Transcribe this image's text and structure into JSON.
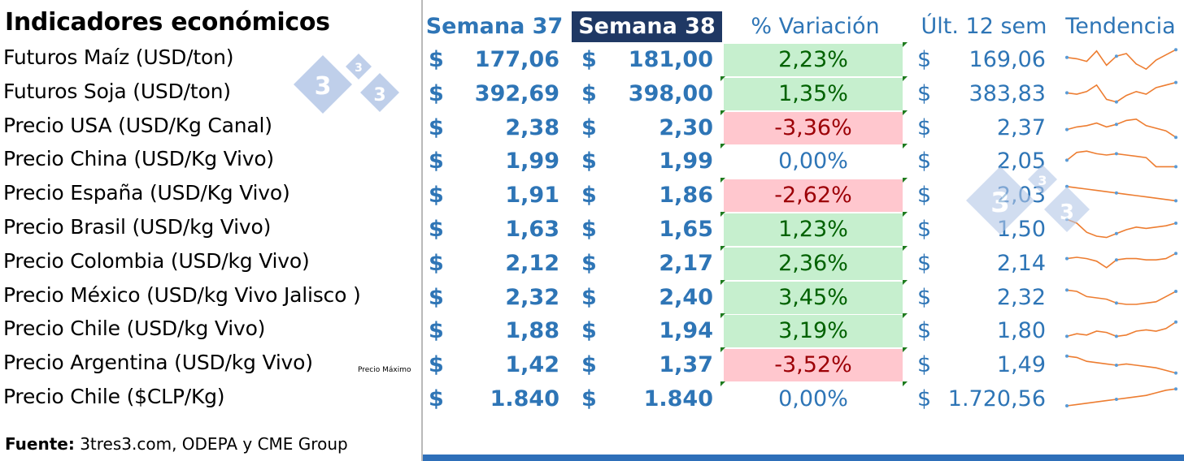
{
  "title": "Indicadores económicos",
  "headers": {
    "week_prev": "Semana 37",
    "week_curr": "Semana 38",
    "variation": "% Variación",
    "last12": "Últ. 12 sem",
    "trend": "Tendencia"
  },
  "currency_symbol": "$",
  "rows": [
    {
      "label": "Futuros Maíz (USD/ton)",
      "w37": "177,06",
      "w38": "181,00",
      "var": "2,23%",
      "dir": "up",
      "avg": "169,06",
      "spark": [
        0.6,
        0.55,
        0.45,
        0.85,
        0.3,
        0.65,
        0.75,
        0.35,
        0.15,
        0.5,
        0.7,
        0.9
      ]
    },
    {
      "label": "Futuros Soja (USD/ton)",
      "w37": "392,69",
      "w38": "398,00",
      "var": "1,35%",
      "dir": "up",
      "avg": "383,83",
      "spark": [
        0.55,
        0.5,
        0.6,
        0.85,
        0.3,
        0.2,
        0.45,
        0.6,
        0.5,
        0.75,
        0.85,
        0.95
      ]
    },
    {
      "label": "Precio USA (USD/Kg Canal)",
      "w37": "2,38",
      "w38": "2,30",
      "var": "-3,36%",
      "dir": "down",
      "avg": "2,37",
      "spark": [
        0.45,
        0.55,
        0.6,
        0.7,
        0.55,
        0.65,
        0.8,
        0.85,
        0.6,
        0.5,
        0.4,
        0.15
      ]
    },
    {
      "label": "Precio China (USD/Kg Vivo)",
      "w37": "1,99",
      "w38": "1,99",
      "var": "0,00%",
      "dir": "flat",
      "avg": "2,05",
      "spark": [
        0.55,
        0.85,
        0.9,
        0.8,
        0.75,
        0.8,
        0.75,
        0.7,
        0.65,
        0.3,
        0.3,
        0.3
      ]
    },
    {
      "label": "Precio España (USD/Kg Vivo)",
      "w37": "1,91",
      "w38": "1,86",
      "var": "-2,62%",
      "dir": "down",
      "avg": "2,03",
      "spark": [
        0.85,
        0.8,
        0.75,
        0.7,
        0.65,
        0.6,
        0.55,
        0.5,
        0.45,
        0.4,
        0.35,
        0.3
      ]
    },
    {
      "label": "Precio  Brasil (USD/kg Vivo)",
      "w37": "1,63",
      "w38": "1,65",
      "var": "1,23%",
      "dir": "up",
      "avg": "1,50",
      "spark": [
        0.9,
        0.75,
        0.4,
        0.25,
        0.2,
        0.35,
        0.5,
        0.6,
        0.55,
        0.6,
        0.65,
        0.75
      ]
    },
    {
      "label": "Precio Colombia (USD/kg Vivo)",
      "w37": "2,12",
      "w38": "2,17",
      "var": "2,36%",
      "dir": "up",
      "avg": "2,14",
      "spark": [
        0.7,
        0.75,
        0.7,
        0.6,
        0.35,
        0.65,
        0.7,
        0.7,
        0.65,
        0.65,
        0.7,
        0.9
      ]
    },
    {
      "label": "Precio México (USD/kg Vivo Jalisco )",
      "w37": "2,32",
      "w38": "2,40",
      "var": "3,45%",
      "dir": "up",
      "avg": "2,32",
      "spark": [
        0.8,
        0.75,
        0.55,
        0.5,
        0.45,
        0.3,
        0.25,
        0.25,
        0.3,
        0.35,
        0.55,
        0.75
      ]
    },
    {
      "label": "Precio Chile (USD/kg Vivo)",
      "w37": "1,88",
      "w38": "1,94",
      "var": "3,19%",
      "dir": "up",
      "avg": "1,80",
      "spark": [
        0.3,
        0.4,
        0.35,
        0.5,
        0.45,
        0.3,
        0.35,
        0.5,
        0.55,
        0.5,
        0.6,
        0.85
      ]
    },
    {
      "label": "Precio Argentina (USD/kg Vivo)",
      "w37": "1,42",
      "w38": "1,37",
      "var": "-3,52%",
      "dir": "down",
      "avg": "1,49",
      "spark": [
        0.85,
        0.8,
        0.65,
        0.6,
        0.55,
        0.5,
        0.55,
        0.5,
        0.45,
        0.4,
        0.3,
        0.2
      ]
    },
    {
      "label": "Precio Chile ($CLP/Kg)",
      "w37": "1.840",
      "w38": "1.840",
      "var": "0,00%",
      "dir": "flat",
      "avg": "1.720,56",
      "spark": [
        0.25,
        0.3,
        0.35,
        0.4,
        0.45,
        0.5,
        0.55,
        0.6,
        0.65,
        0.75,
        0.85,
        0.9
      ]
    }
  ],
  "argentina_note": "Precio Máximo",
  "source": {
    "label": "Fuente:",
    "text": " 3tres3.com, ODEPA y CME Group"
  },
  "logo_digit": "3",
  "colors": {
    "accent": "#2e75b6",
    "header_dark": "#1f3864",
    "up_bg": "#c6efce",
    "up_fg": "#006100",
    "down_bg": "#ffc7ce",
    "down_fg": "#9c0006",
    "spark": "#ed7d31",
    "spark_point": "#5b9bd5",
    "logo": "#b4c7e7"
  }
}
